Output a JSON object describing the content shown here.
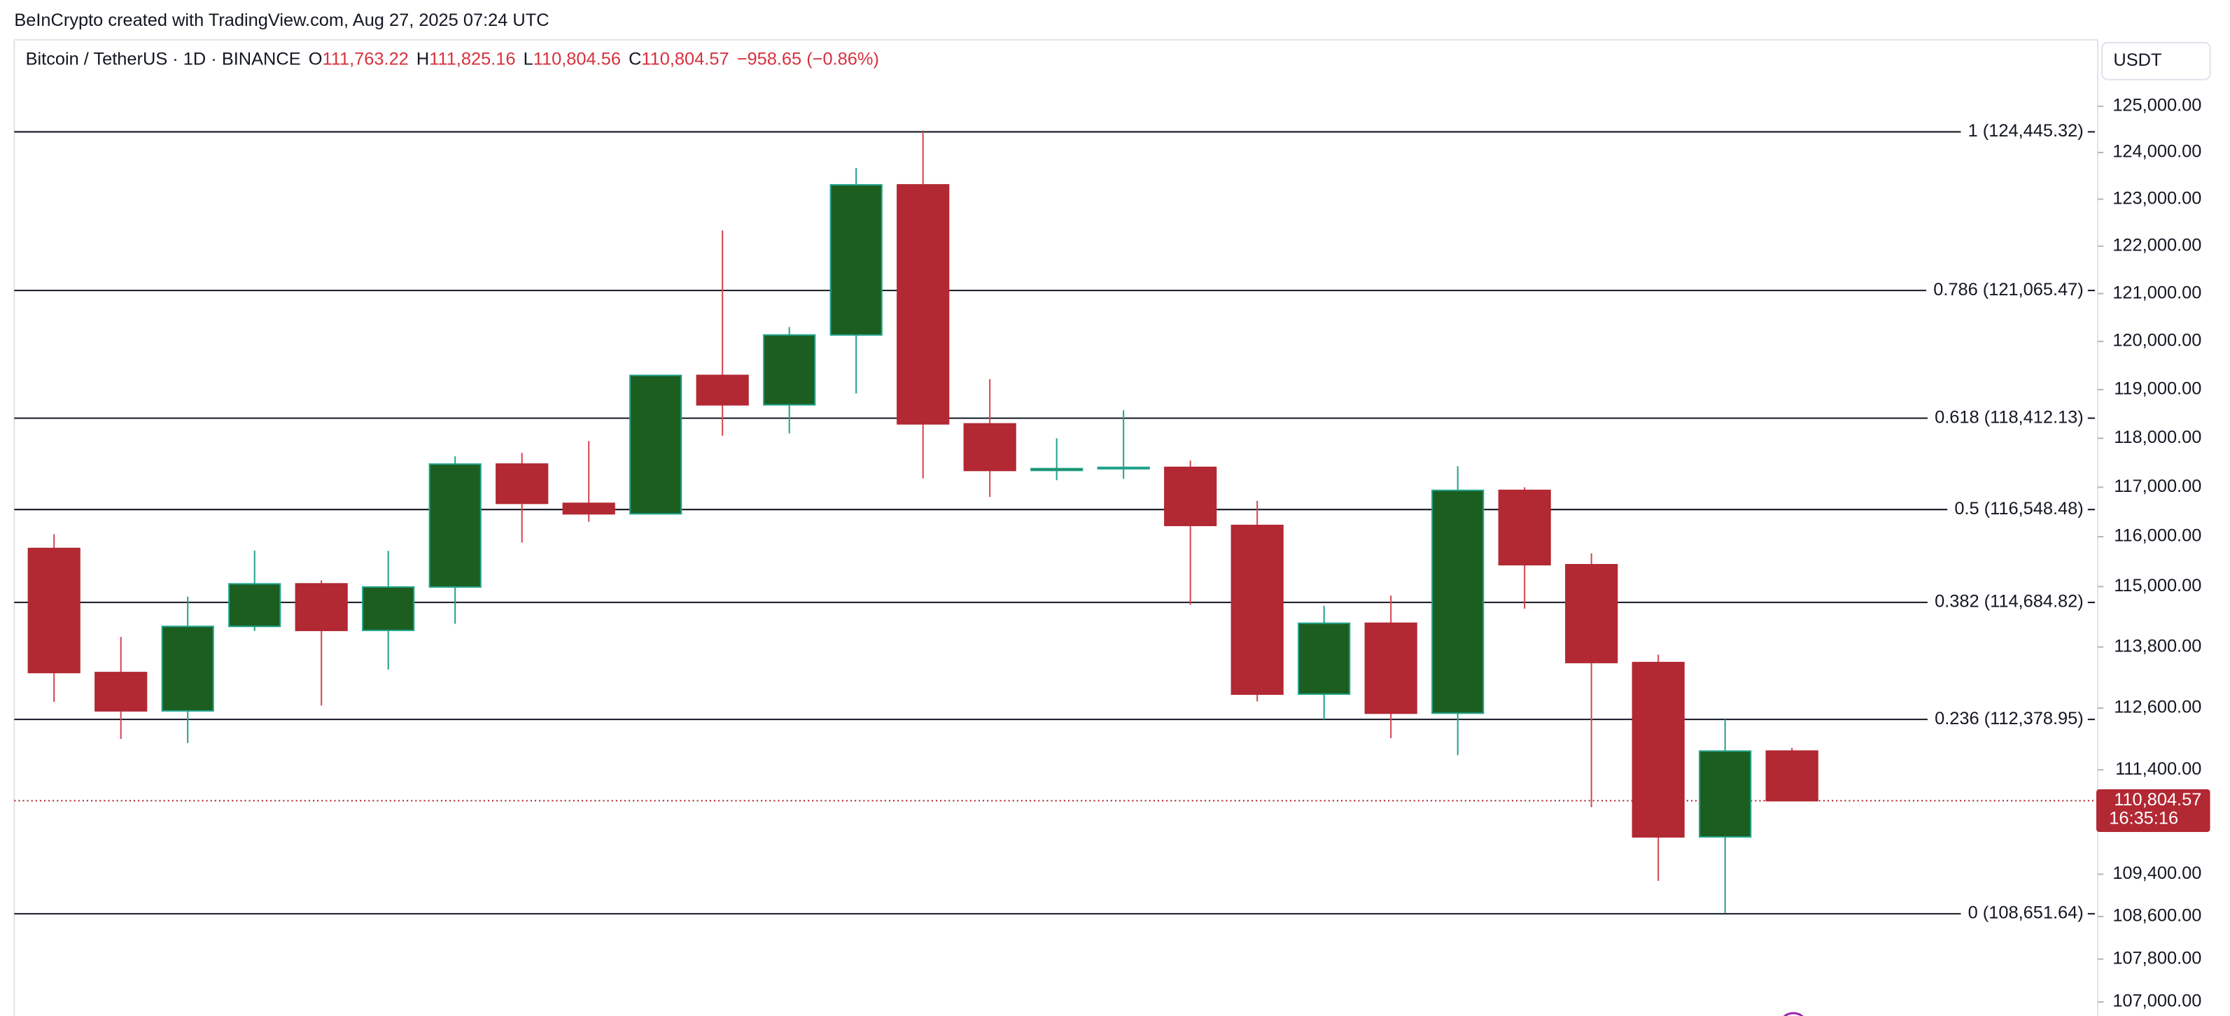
{
  "chart_data": {
    "type": "candlestick",
    "source": "BeInCrypto created with TradingView.com, Aug 27, 2025 07:24 UTC",
    "currency": "USDT",
    "legend": {
      "symbol": "Bitcoin / TetherUS · 1D · BINANCE",
      "open": {
        "label": "O",
        "value": "111,763.22"
      },
      "high": {
        "label": "H",
        "value": "111,825.16"
      },
      "low": {
        "label": "L",
        "value": "110,804.56"
      },
      "close": {
        "label": "C",
        "value": "110,804.57"
      },
      "change": "−958.65 (−0.86%)"
    },
    "log_scale": true,
    "up_color": "#1b5e20",
    "up_border_color": "#22a38a",
    "down_color": "#b22833",
    "down_wick_color": "#d64550",
    "fib_color": "#131722",
    "series": [
      {
        "open": [
          115764,
          113297,
          112546,
          114208,
          115055,
          114129,
          114992,
          117472,
          116674,
          116462,
          119294,
          118686,
          120134,
          123306,
          118295,
          117342,
          117380,
          117405,
          116227,
          112873,
          114271,
          112500,
          116937,
          115438,
          113494,
          110111,
          111763.22
        ],
        "high": [
          116052,
          114000,
          114800,
          115720,
          115127,
          115716,
          117630,
          117700,
          117944,
          119311,
          122335,
          120300,
          123667,
          124474,
          119216,
          117999,
          118575,
          117543,
          116725,
          114615,
          114821,
          117429,
          117000,
          115666,
          113650,
          112380,
          111825.16
        ],
        "low": [
          112722,
          112000,
          111920,
          114119,
          112650,
          113356,
          114259,
          115880,
          116300,
          116460,
          118050,
          118100,
          118920,
          117180,
          116803,
          117143,
          117172,
          114640,
          112732,
          112380,
          112015,
          111684,
          114560,
          110680,
          109274,
          108666,
          110804.56
        ],
        "close": [
          113297,
          112546,
          114208,
          115055,
          114129,
          114992,
          117472,
          116674,
          116462,
          119294,
          118686,
          120134,
          123306,
          118295,
          117342,
          117380,
          117405,
          116227,
          112873,
          114271,
          112500,
          116937,
          115438,
          113494,
          110111,
          111763,
          110804.57
        ]
      }
    ],
    "fib_levels": [
      {
        "value": 124445.32,
        "label": "1 (124,445.32)"
      },
      {
        "value": 121065.47,
        "label": "0.786 (121,065.47)"
      },
      {
        "value": 118412.13,
        "label": "0.618 (118,412.13)"
      },
      {
        "value": 116548.48,
        "label": "0.5 (116,548.48)"
      },
      {
        "value": 114684.82,
        "label": "0.382 (114,684.82)"
      },
      {
        "value": 112378.95,
        "label": "0.236 (112,378.95)"
      },
      {
        "value": 108651.64,
        "label": "0 (108,651.64)"
      }
    ],
    "last_price": {
      "value": 110804.57,
      "label": "110,804.57"
    },
    "countdown": "16:35:16",
    "ylim": [
      106740,
      126450
    ],
    "yticks": [
      {
        "value": 125000,
        "label": "125,000.00"
      },
      {
        "value": 124000,
        "label": "124,000.00"
      },
      {
        "value": 123000,
        "label": "123,000.00"
      },
      {
        "value": 122000,
        "label": "122,000.00"
      },
      {
        "value": 121000,
        "label": "121,000.00"
      },
      {
        "value": 120000,
        "label": "120,000.00"
      },
      {
        "value": 119000,
        "label": "119,000.00"
      },
      {
        "value": 118000,
        "label": "118,000.00"
      },
      {
        "value": 117000,
        "label": "117,000.00"
      },
      {
        "value": 116000,
        "label": "116,000.00"
      },
      {
        "value": 115000,
        "label": "115,000.00"
      },
      {
        "value": 113800,
        "label": "113,800.00"
      },
      {
        "value": 112600,
        "label": "112,600.00"
      },
      {
        "value": 111400,
        "label": "111,400.00"
      },
      {
        "value": 109400,
        "label": "109,400.00"
      },
      {
        "value": 108600,
        "label": "108,600.00"
      },
      {
        "value": 107800,
        "label": "107,800.00"
      },
      {
        "value": 107000,
        "label": "107,000.00"
      }
    ]
  }
}
